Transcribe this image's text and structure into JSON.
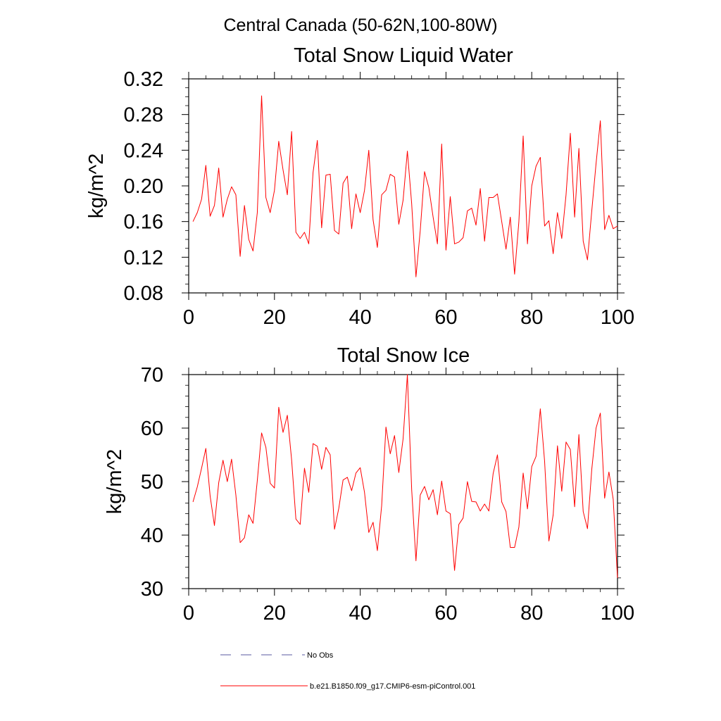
{
  "suptitle": "Central Canada (50-62N,100-80W)",
  "legend": {
    "placement": "bottom",
    "entries": [
      {
        "label": "No Obs",
        "color": "#5a5aa0",
        "style": "dashed"
      },
      {
        "label": "b.e21.B1850.f09_g17.CMIP6-esm-piControl.001",
        "color": "#ff0000",
        "style": "solid"
      }
    ]
  },
  "chart_data": [
    {
      "type": "line",
      "title": "Total Snow Liquid Water",
      "xlabel": "",
      "ylabel": "kg/m^2",
      "xlim": [
        0,
        100
      ],
      "ylim": [
        0.08,
        0.32
      ],
      "xticks": [
        0,
        20,
        40,
        60,
        80,
        100
      ],
      "xtick_labels": [
        "0",
        "20",
        "40",
        "60",
        "80",
        "100"
      ],
      "yticks": [
        0.08,
        0.12,
        0.16,
        0.2,
        0.24,
        0.28,
        0.32
      ],
      "ytick_labels": [
        "0.08",
        "0.12",
        "0.16",
        "0.20",
        "0.24",
        "0.28",
        "0.32"
      ],
      "grid": false,
      "series": [
        {
          "color": "#ff0000",
          "x_start": 1,
          "values": [
            0.16,
            0.17,
            0.185,
            0.223,
            0.166,
            0.178,
            0.22,
            0.165,
            0.185,
            0.199,
            0.19,
            0.121,
            0.178,
            0.14,
            0.127,
            0.17,
            0.301,
            0.187,
            0.17,
            0.195,
            0.25,
            0.218,
            0.19,
            0.261,
            0.148,
            0.141,
            0.148,
            0.135,
            0.215,
            0.251,
            0.153,
            0.212,
            0.213,
            0.15,
            0.146,
            0.203,
            0.211,
            0.152,
            0.191,
            0.17,
            0.195,
            0.24,
            0.162,
            0.131,
            0.19,
            0.195,
            0.213,
            0.21,
            0.157,
            0.184,
            0.239,
            0.18,
            0.098,
            0.15,
            0.216,
            0.198,
            0.165,
            0.135,
            0.247,
            0.128,
            0.188,
            0.135,
            0.137,
            0.142,
            0.172,
            0.175,
            0.156,
            0.197,
            0.138,
            0.187,
            0.187,
            0.191,
            0.16,
            0.129,
            0.165,
            0.101,
            0.16,
            0.256,
            0.135,
            0.2,
            0.222,
            0.232,
            0.155,
            0.161,
            0.124,
            0.17,
            0.141,
            0.19,
            0.259,
            0.165,
            0.242,
            0.138,
            0.117,
            0.172,
            0.225,
            0.273,
            0.151,
            0.167,
            0.152,
            0.155
          ]
        }
      ]
    },
    {
      "type": "line",
      "title": "Total Snow Ice",
      "xlabel": "",
      "ylabel": "kg/m^2",
      "xlim": [
        0,
        100
      ],
      "ylim": [
        30,
        70
      ],
      "xticks": [
        0,
        20,
        40,
        60,
        80,
        100
      ],
      "xtick_labels": [
        "0",
        "20",
        "40",
        "60",
        "80",
        "100"
      ],
      "yticks": [
        30,
        40,
        50,
        60,
        70
      ],
      "ytick_labels": [
        "30",
        "40",
        "50",
        "60",
        "70"
      ],
      "grid": false,
      "series": [
        {
          "color": "#ff0000",
          "x_start": 1,
          "values": [
            46.2,
            49.0,
            52.5,
            56.2,
            47.3,
            41.8,
            49.8,
            54.0,
            50.0,
            54.2,
            47.5,
            38.6,
            39.5,
            43.8,
            42.2,
            50.2,
            59.1,
            56.4,
            49.7,
            48.8,
            63.9,
            59.2,
            62.4,
            54.1,
            43.0,
            42.0,
            52.5,
            48.0,
            57.1,
            56.6,
            52.3,
            56.4,
            55.0,
            41.1,
            45.0,
            50.3,
            50.8,
            48.3,
            51.6,
            52.6,
            48.0,
            40.5,
            42.4,
            37.1,
            45.5,
            60.2,
            55.2,
            58.6,
            51.7,
            58.0,
            70.0,
            48.5,
            35.2,
            47.5,
            49.1,
            46.6,
            48.5,
            43.8,
            50.1,
            44.5,
            44.0,
            33.4,
            42.0,
            43.2,
            50.0,
            46.3,
            46.2,
            44.5,
            45.8,
            44.5,
            51.5,
            55.0,
            46.2,
            44.4,
            37.7,
            37.7,
            41.5,
            51.6,
            44.9,
            52.8,
            54.7,
            63.6,
            53.8,
            38.9,
            43.8,
            56.7,
            48.2,
            57.4,
            56.0,
            45.3,
            58.8,
            44.4,
            41.2,
            52.3,
            60.0,
            62.8,
            46.9,
            51.8,
            46.7,
            32.0
          ]
        }
      ]
    }
  ]
}
